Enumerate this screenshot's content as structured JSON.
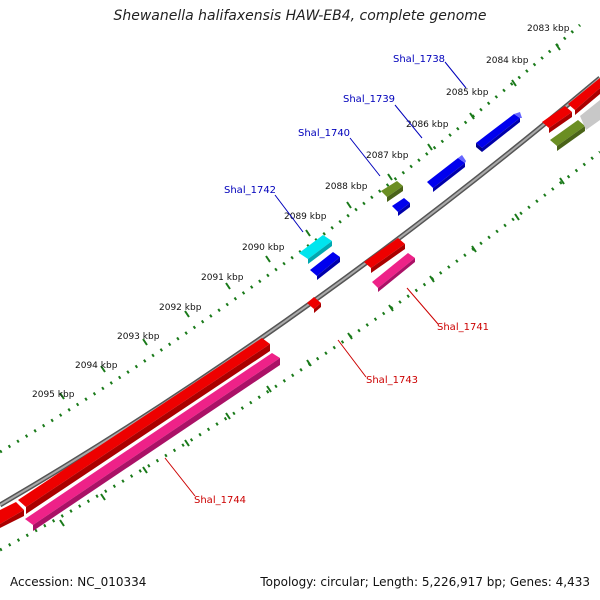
{
  "title": "Shewanella halifaxensis HAW-EB4, complete genome",
  "footer": {
    "accession": "Accession: NC_010334",
    "summary": "Topology: circular; Length: 5,226,917 bp; Genes: 4,433"
  },
  "colors": {
    "backbone": "#888888",
    "ticks": "#1a7a1a",
    "red": "#ee0000",
    "pink": "#ee2288",
    "blue": "#0000ee",
    "olive": "#6b8e23",
    "cyan": "#00e5ee",
    "grey": "#bbbbbb"
  },
  "kbp_labels": [
    "2083 kbp",
    "2084 kbp",
    "2085 kbp",
    "2086 kbp",
    "2087 kbp",
    "2088 kbp",
    "2089 kbp",
    "2090 kbp",
    "2091 kbp",
    "2092 kbp",
    "2093 kbp",
    "2094 kbp",
    "2095 kbp"
  ],
  "gene_labels_top": [
    "Shal_1738",
    "Shal_1739",
    "Shal_1740",
    "Shal_1742"
  ],
  "gene_labels_bottom": [
    "Shal_1741",
    "Shal_1743",
    "Shal_1744"
  ]
}
